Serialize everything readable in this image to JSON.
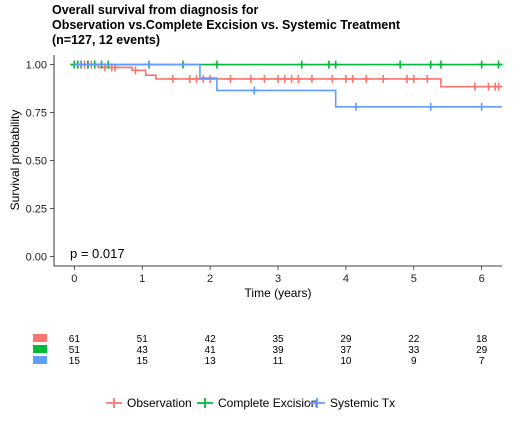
{
  "chart_data": {
    "type": "line",
    "title_lines": [
      "Overall survival from diagnosis for",
      "Observation vs.Complete Excision vs. Systemic Treatment",
      "(n=127, 12 events)"
    ],
    "xlabel": "Time (years)",
    "ylabel": "Survival probability",
    "xlim": [
      -0.3,
      6.3
    ],
    "ylim": [
      -0.05,
      1.05
    ],
    "x_ticks": [
      0,
      1,
      2,
      3,
      4,
      5,
      6
    ],
    "x_tick_labels": [
      "0",
      "1",
      "2",
      "3",
      "4",
      "5",
      "6"
    ],
    "y_ticks": [
      0,
      0.25,
      0.5,
      0.75,
      1.0
    ],
    "y_tick_labels": [
      "0.00",
      "0.25",
      "0.50",
      "0.75",
      "1.00"
    ],
    "annotation": "p = 0.017",
    "legend_position": "bottom",
    "series": [
      {
        "name": "Observation",
        "color": "#f8766d",
        "steps": [
          [
            0,
            1.0
          ],
          [
            0.35,
            0.985
          ],
          [
            0.85,
            0.97
          ],
          [
            1.05,
            0.945
          ],
          [
            1.2,
            0.925
          ],
          [
            4.7,
            0.925
          ],
          [
            5.4,
            0.885
          ],
          [
            6.3,
            0.885
          ]
        ],
        "censors": [
          [
            0.0,
            1.0
          ],
          [
            0.05,
            1.0
          ],
          [
            0.1,
            1.0
          ],
          [
            0.15,
            1.0
          ],
          [
            0.2,
            1.0
          ],
          [
            0.25,
            1.0
          ],
          [
            0.3,
            1.0
          ],
          [
            0.45,
            0.985
          ],
          [
            0.55,
            0.985
          ],
          [
            0.6,
            0.985
          ],
          [
            0.9,
            0.97
          ],
          [
            1.45,
            0.925
          ],
          [
            1.7,
            0.925
          ],
          [
            1.8,
            0.925
          ],
          [
            1.9,
            0.925
          ],
          [
            2.0,
            0.925
          ],
          [
            2.3,
            0.925
          ],
          [
            2.6,
            0.925
          ],
          [
            2.8,
            0.925
          ],
          [
            3.0,
            0.925
          ],
          [
            3.1,
            0.925
          ],
          [
            3.2,
            0.925
          ],
          [
            3.3,
            0.925
          ],
          [
            3.5,
            0.925
          ],
          [
            3.8,
            0.925
          ],
          [
            4.0,
            0.925
          ],
          [
            4.1,
            0.925
          ],
          [
            4.3,
            0.925
          ],
          [
            4.55,
            0.925
          ],
          [
            4.9,
            0.925
          ],
          [
            5.0,
            0.925
          ],
          [
            5.2,
            0.925
          ],
          [
            5.9,
            0.885
          ],
          [
            6.1,
            0.885
          ],
          [
            6.2,
            0.885
          ],
          [
            6.25,
            0.885
          ]
        ]
      },
      {
        "name": "Complete Excision",
        "color": "#00ba38",
        "steps": [
          [
            0,
            1.0
          ],
          [
            6.3,
            1.0
          ]
        ],
        "censors": [
          [
            0.0,
            1.0
          ],
          [
            0.05,
            1.0
          ],
          [
            0.1,
            1.0
          ],
          [
            0.2,
            1.0
          ],
          [
            0.3,
            1.0
          ],
          [
            0.4,
            1.0
          ],
          [
            0.5,
            1.0
          ],
          [
            1.1,
            1.0
          ],
          [
            1.6,
            1.0
          ],
          [
            2.1,
            1.0
          ],
          [
            3.35,
            1.0
          ],
          [
            3.75,
            1.0
          ],
          [
            3.85,
            1.0
          ],
          [
            4.8,
            1.0
          ],
          [
            5.25,
            1.0
          ],
          [
            5.4,
            1.0
          ],
          [
            6.0,
            1.0
          ],
          [
            6.25,
            1.0
          ]
        ]
      },
      {
        "name": "Systemic Tx",
        "color": "#619cff",
        "steps": [
          [
            0,
            1.0
          ],
          [
            1.85,
            1.0
          ],
          [
            1.85,
            0.93
          ],
          [
            2.1,
            0.93
          ],
          [
            2.1,
            0.865
          ],
          [
            3.85,
            0.865
          ],
          [
            3.85,
            0.78
          ],
          [
            6.3,
            0.78
          ]
        ],
        "censors": [
          [
            0.1,
            1.0
          ],
          [
            1.1,
            1.0
          ],
          [
            2.65,
            0.865
          ],
          [
            4.15,
            0.78
          ],
          [
            5.25,
            0.78
          ],
          [
            6.0,
            0.78
          ]
        ]
      }
    ],
    "risk_table": {
      "times": [
        0,
        1,
        2,
        3,
        4,
        5,
        6
      ],
      "rows": [
        {
          "name": "Observation",
          "color": "#f8766d",
          "values": [
            "61",
            "51",
            "42",
            "35",
            "29",
            "22",
            "18"
          ]
        },
        {
          "name": "Complete Excision",
          "color": "#00ba38",
          "values": [
            "51",
            "43",
            "41",
            "39",
            "37",
            "33",
            "29"
          ]
        },
        {
          "name": "Systemic Tx",
          "color": "#619cff",
          "values": [
            "15",
            "15",
            "13",
            "11",
            "10",
            "9",
            "7"
          ]
        }
      ]
    }
  }
}
